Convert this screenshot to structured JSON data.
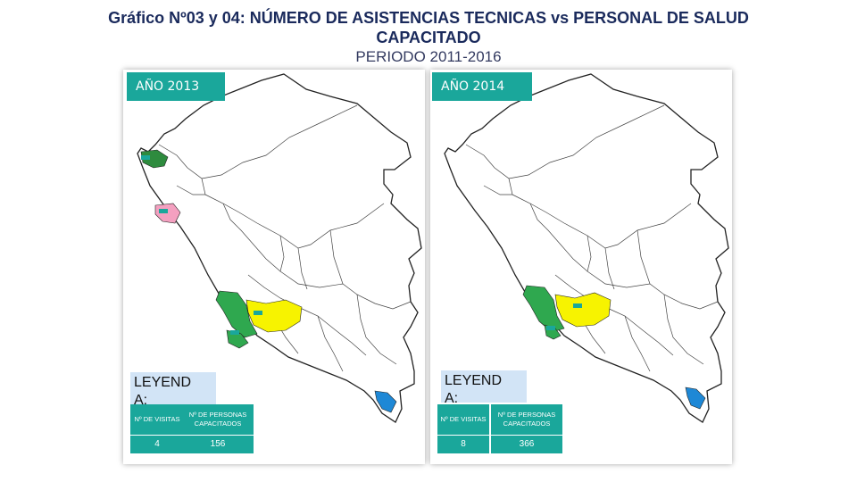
{
  "title": {
    "line1": "Gráfico Nº03 y 04: NÚMERO DE ASISTENCIAS TECNICAS vs PERSONAL DE SALUD",
    "line2": "CAPACITADO",
    "line3": "PERIODO 2011-2016"
  },
  "panels": [
    {
      "year": "AÑO 2013",
      "legend_title": "LEYEND\nA:",
      "legend": {
        "visits_header": "Nº DE VISITAS",
        "people_header": "Nº DE PERSONAS CAPACITADOS",
        "visits_value": "4",
        "people_value": "156"
      }
    },
    {
      "year": "AÑO 2014",
      "legend_title": "LEYEND\nA:",
      "legend": {
        "visits_header": "Nº DE VISITAS",
        "people_header": "Nº DE PERSONAS CAPACITADOS",
        "visits_value": "8",
        "people_value": "366"
      }
    }
  ],
  "colors": {
    "accent_teal": "#1aa79b",
    "legend_bg": "#d2e4f6",
    "region_green": "#2fa84f",
    "region_yellow": "#f7f300",
    "region_blue": "#1e88d6",
    "region_pink": "#f4a0c0",
    "region_dark_green": "#2e8b3e"
  }
}
